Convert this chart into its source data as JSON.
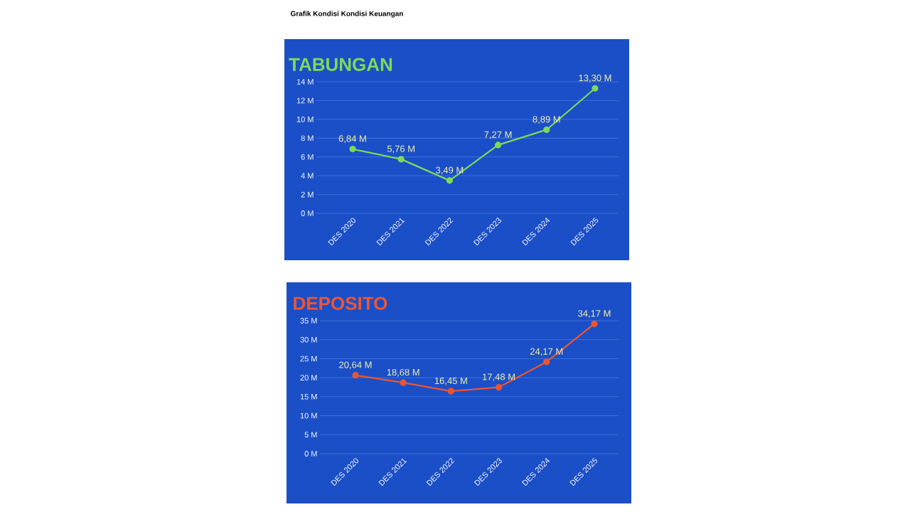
{
  "chart_data": [
    {
      "type": "line",
      "title": "TABUNGAN",
      "annotations": [
        "Grafik Kondisi Kondisi Keuangan"
      ],
      "categories": [
        "DES 2020",
        "DES 2021",
        "DES 2022",
        "DES 2023",
        "DES 2024",
        "DES 2025"
      ],
      "values": [
        6.84,
        5.76,
        3.49,
        7.27,
        8.89,
        13.3
      ],
      "color": "#7ed957",
      "value_labels": [
        "6,84 M",
        "5,76 M",
        "3,49 M",
        "7,27 M",
        "8,89 M",
        "13,30 M"
      ],
      "ylim": [
        0,
        14
      ],
      "yticks": [
        {
          "value": 0,
          "label": "0 M"
        },
        {
          "value": 2,
          "label": "2 M"
        },
        {
          "value": 4,
          "label": "4 M"
        },
        {
          "value": 6,
          "label": "6 M"
        },
        {
          "value": 8,
          "label": "8 M"
        },
        {
          "value": 10,
          "label": "10 M"
        },
        {
          "value": 12,
          "label": "12 M"
        },
        {
          "value": 14,
          "label": "14 M"
        }
      ],
      "grid": "y",
      "marker": "circle",
      "line_style": "solid"
    },
    {
      "type": "line",
      "title": "DEPOSITO",
      "categories": [
        "DES 2020",
        "DES 2021",
        "DES 2022",
        "DES 2023",
        "DES 2024",
        "DES 2025"
      ],
      "values": [
        20.64,
        18.68,
        16.45,
        17.48,
        24.17,
        34.17
      ],
      "color": "#f0552f",
      "value_labels": [
        "20,64 M",
        "18,68 M",
        "16,45 M",
        "17,48 M",
        "24,17 M",
        "34,17 M"
      ],
      "ylim": [
        0,
        35
      ],
      "yticks": [
        {
          "value": 0,
          "label": "0 M"
        },
        {
          "value": 5,
          "label": "5 M"
        },
        {
          "value": 10,
          "label": "10 M"
        },
        {
          "value": 15,
          "label": "15 M"
        },
        {
          "value": 20,
          "label": "20 M"
        },
        {
          "value": 25,
          "label": "25 M"
        },
        {
          "value": 30,
          "label": "30 M"
        },
        {
          "value": 35,
          "label": "35 M"
        }
      ],
      "grid": "y",
      "marker": "circle",
      "line_style": "solid"
    }
  ]
}
